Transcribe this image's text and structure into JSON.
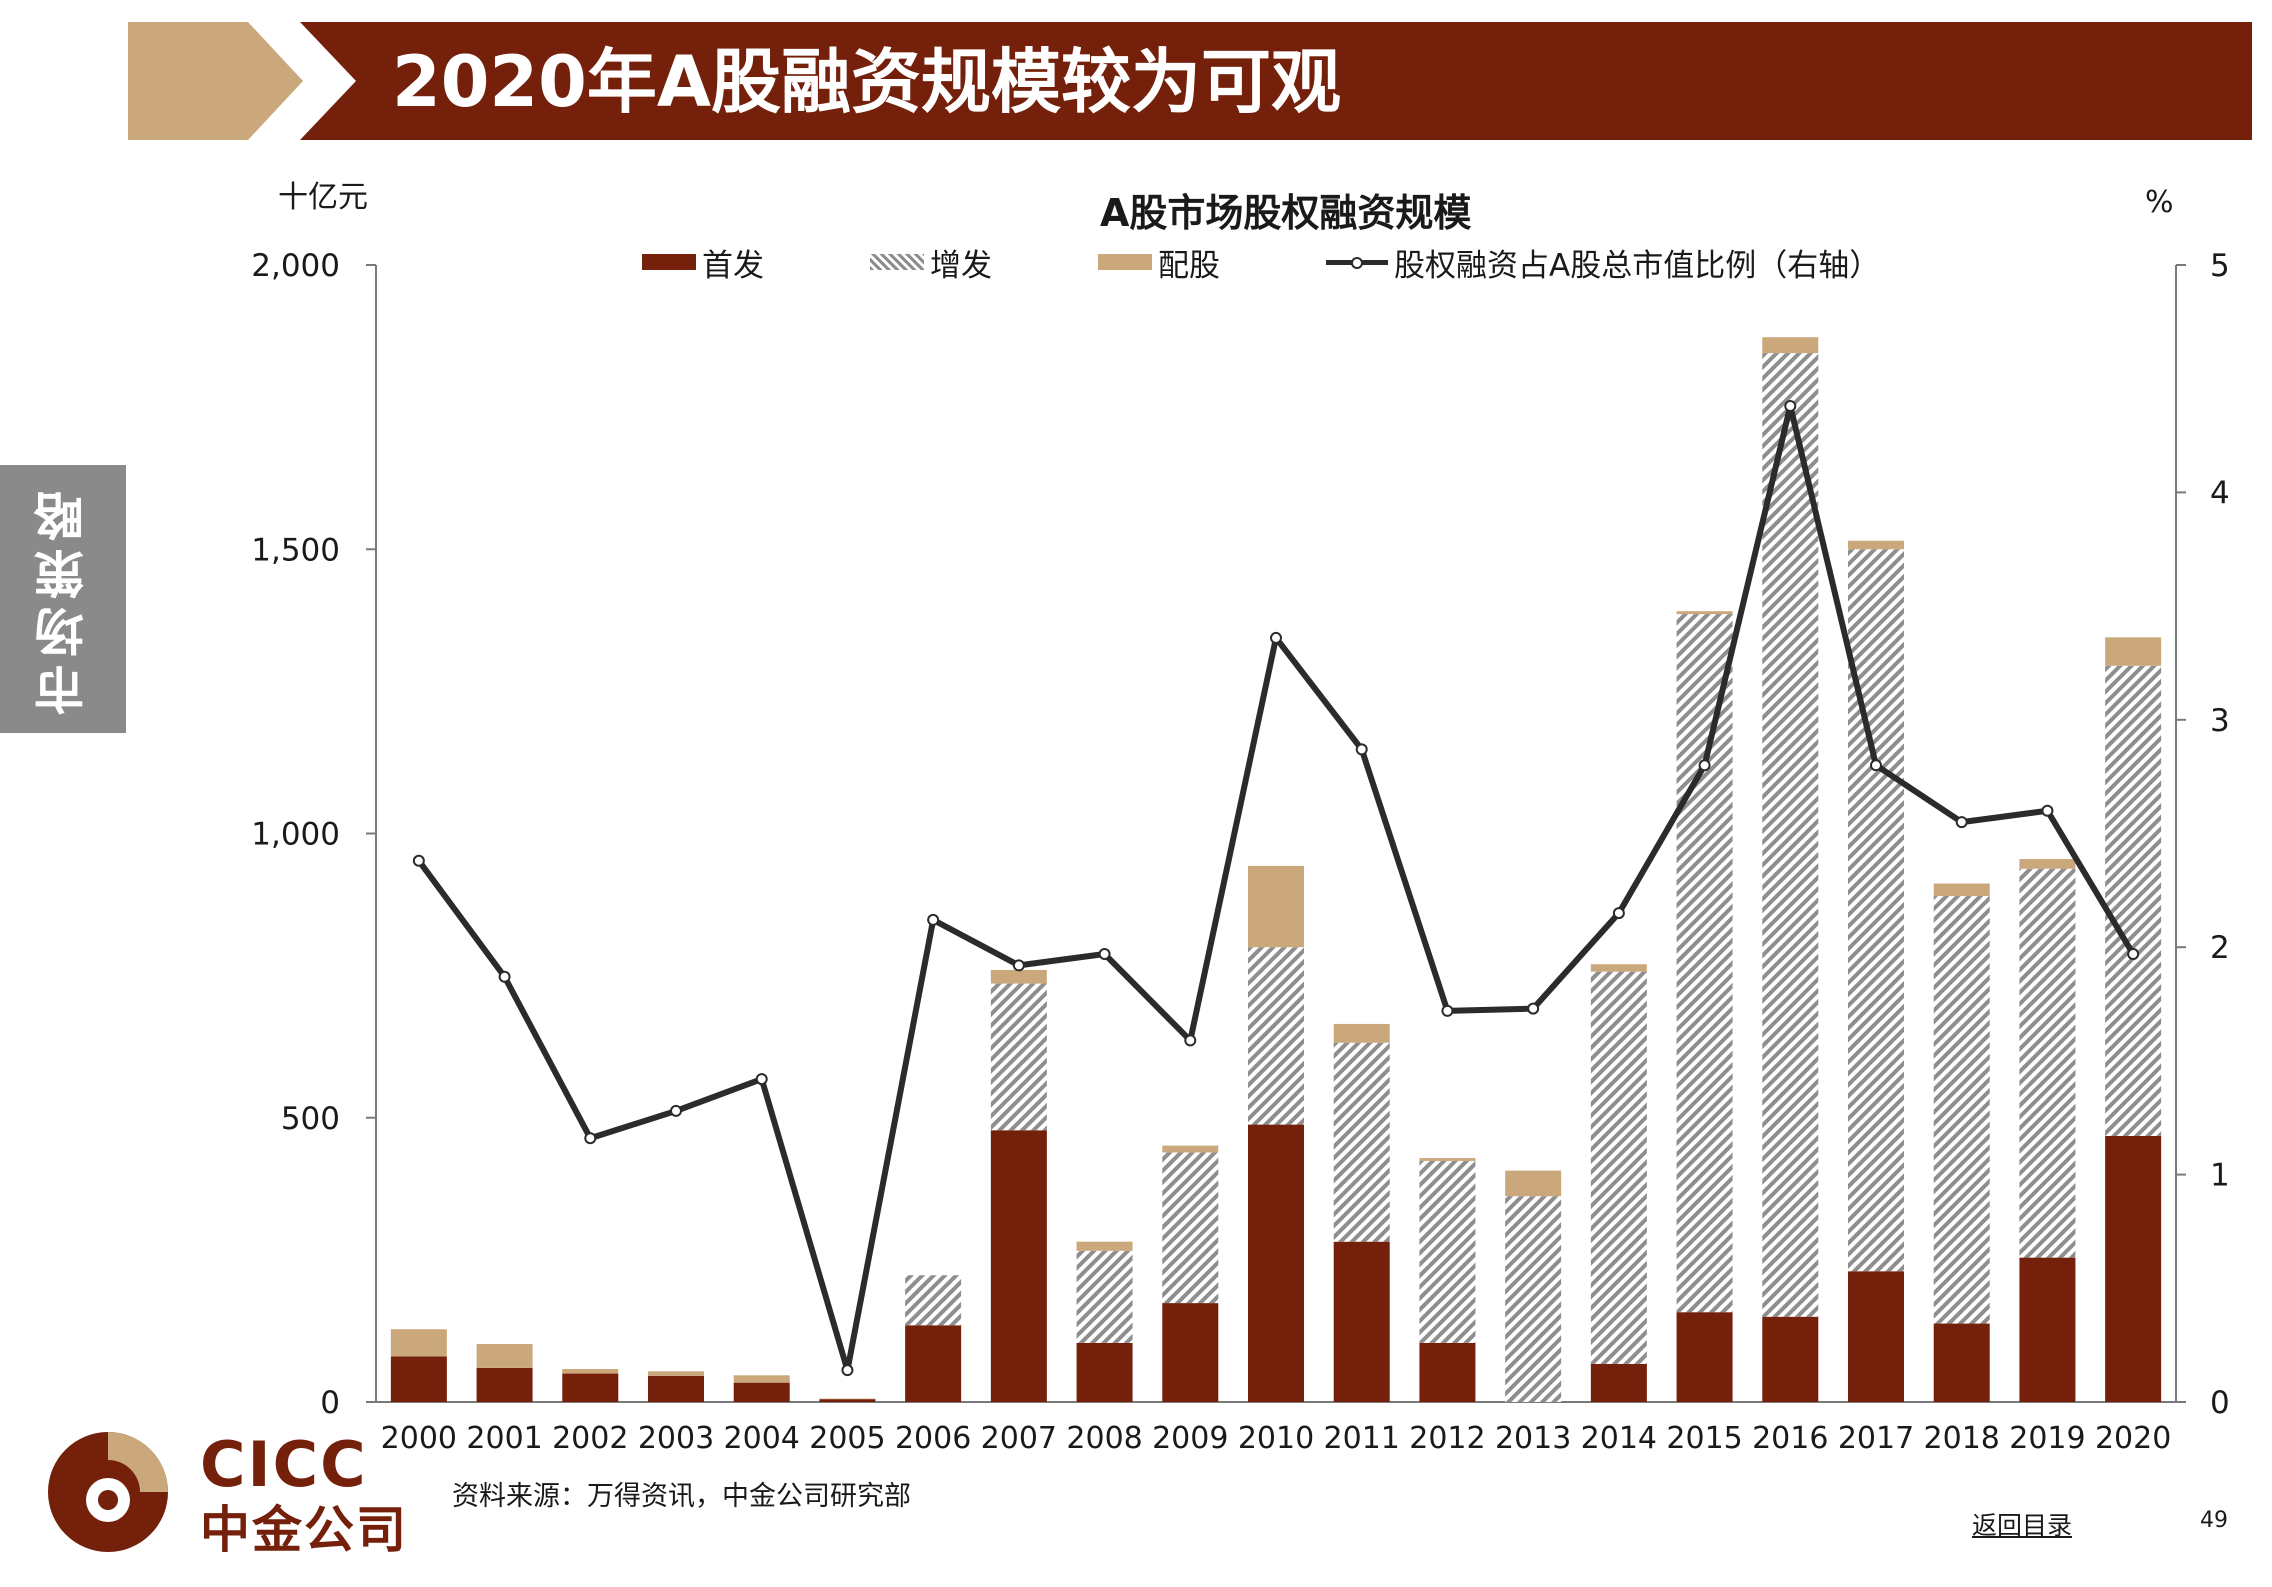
{
  "header": {
    "title": "2020年A股融资规模较为可观"
  },
  "side_tab": {
    "label": "市场策略"
  },
  "units": {
    "left": "十亿元",
    "right": "%"
  },
  "footer": {
    "source": "资料来源：万得资讯，中金公司研究部",
    "toc_link": "返回目录",
    "page_number": "49"
  },
  "logo": {
    "text_en": "CICC",
    "text_cn": "中金公司"
  },
  "colors": {
    "brand": "#74200a",
    "ipo": "#74200a",
    "rights": "#cba77c",
    "secondary": "#8e8e8e",
    "line": "#2b2b2b"
  },
  "chart_data": {
    "type": "bar",
    "stacked": true,
    "title": "A股市场股权融资规模",
    "categories": [
      "2000",
      "2001",
      "2002",
      "2003",
      "2004",
      "2005",
      "2006",
      "2007",
      "2008",
      "2009",
      "2010",
      "2011",
      "2012",
      "2013",
      "2014",
      "2015",
      "2016",
      "2017",
      "2018",
      "2019",
      "2020"
    ],
    "series": [
      {
        "name": "首发",
        "kind": "bar",
        "axis": "left",
        "values": [
          80,
          60,
          50,
          46,
          34,
          5,
          135,
          478,
          104,
          174,
          488,
          282,
          104,
          0,
          67,
          158,
          150,
          230,
          138,
          254,
          468
        ]
      },
      {
        "name": "增发",
        "kind": "bar",
        "axis": "left",
        "values": [
          0,
          0,
          0,
          0,
          0,
          0,
          88,
          258,
          162,
          265,
          312,
          350,
          320,
          362,
          690,
          1228,
          1695,
          1270,
          752,
          684,
          827
        ]
      },
      {
        "name": "配股",
        "kind": "bar",
        "axis": "left",
        "values": [
          48,
          42,
          8,
          8,
          13,
          1,
          0,
          24,
          16,
          12,
          143,
          33,
          5,
          45,
          13,
          5,
          28,
          15,
          22,
          17,
          50
        ]
      },
      {
        "name": "股权融资占A股总市值比例（右轴）",
        "kind": "line",
        "axis": "right",
        "values": [
          2.38,
          1.87,
          1.16,
          1.28,
          1.42,
          0.14,
          2.12,
          1.92,
          1.97,
          1.59,
          3.36,
          2.87,
          1.72,
          1.73,
          2.15,
          2.8,
          4.38,
          2.8,
          2.55,
          2.6,
          1.97
        ]
      }
    ],
    "y_left": {
      "min": 0,
      "max": 2000,
      "ticks": [
        0,
        500,
        1000,
        1500,
        2000
      ],
      "tick_labels": [
        "0",
        "500",
        "1,000",
        "1,500",
        "2,000"
      ]
    },
    "y_right": {
      "min": 0,
      "max": 5,
      "ticks": [
        0,
        1,
        2,
        3,
        4,
        5
      ],
      "tick_labels": [
        "0",
        "1",
        "2",
        "3",
        "4",
        "5"
      ]
    },
    "legend_position": "top",
    "grid": false
  }
}
